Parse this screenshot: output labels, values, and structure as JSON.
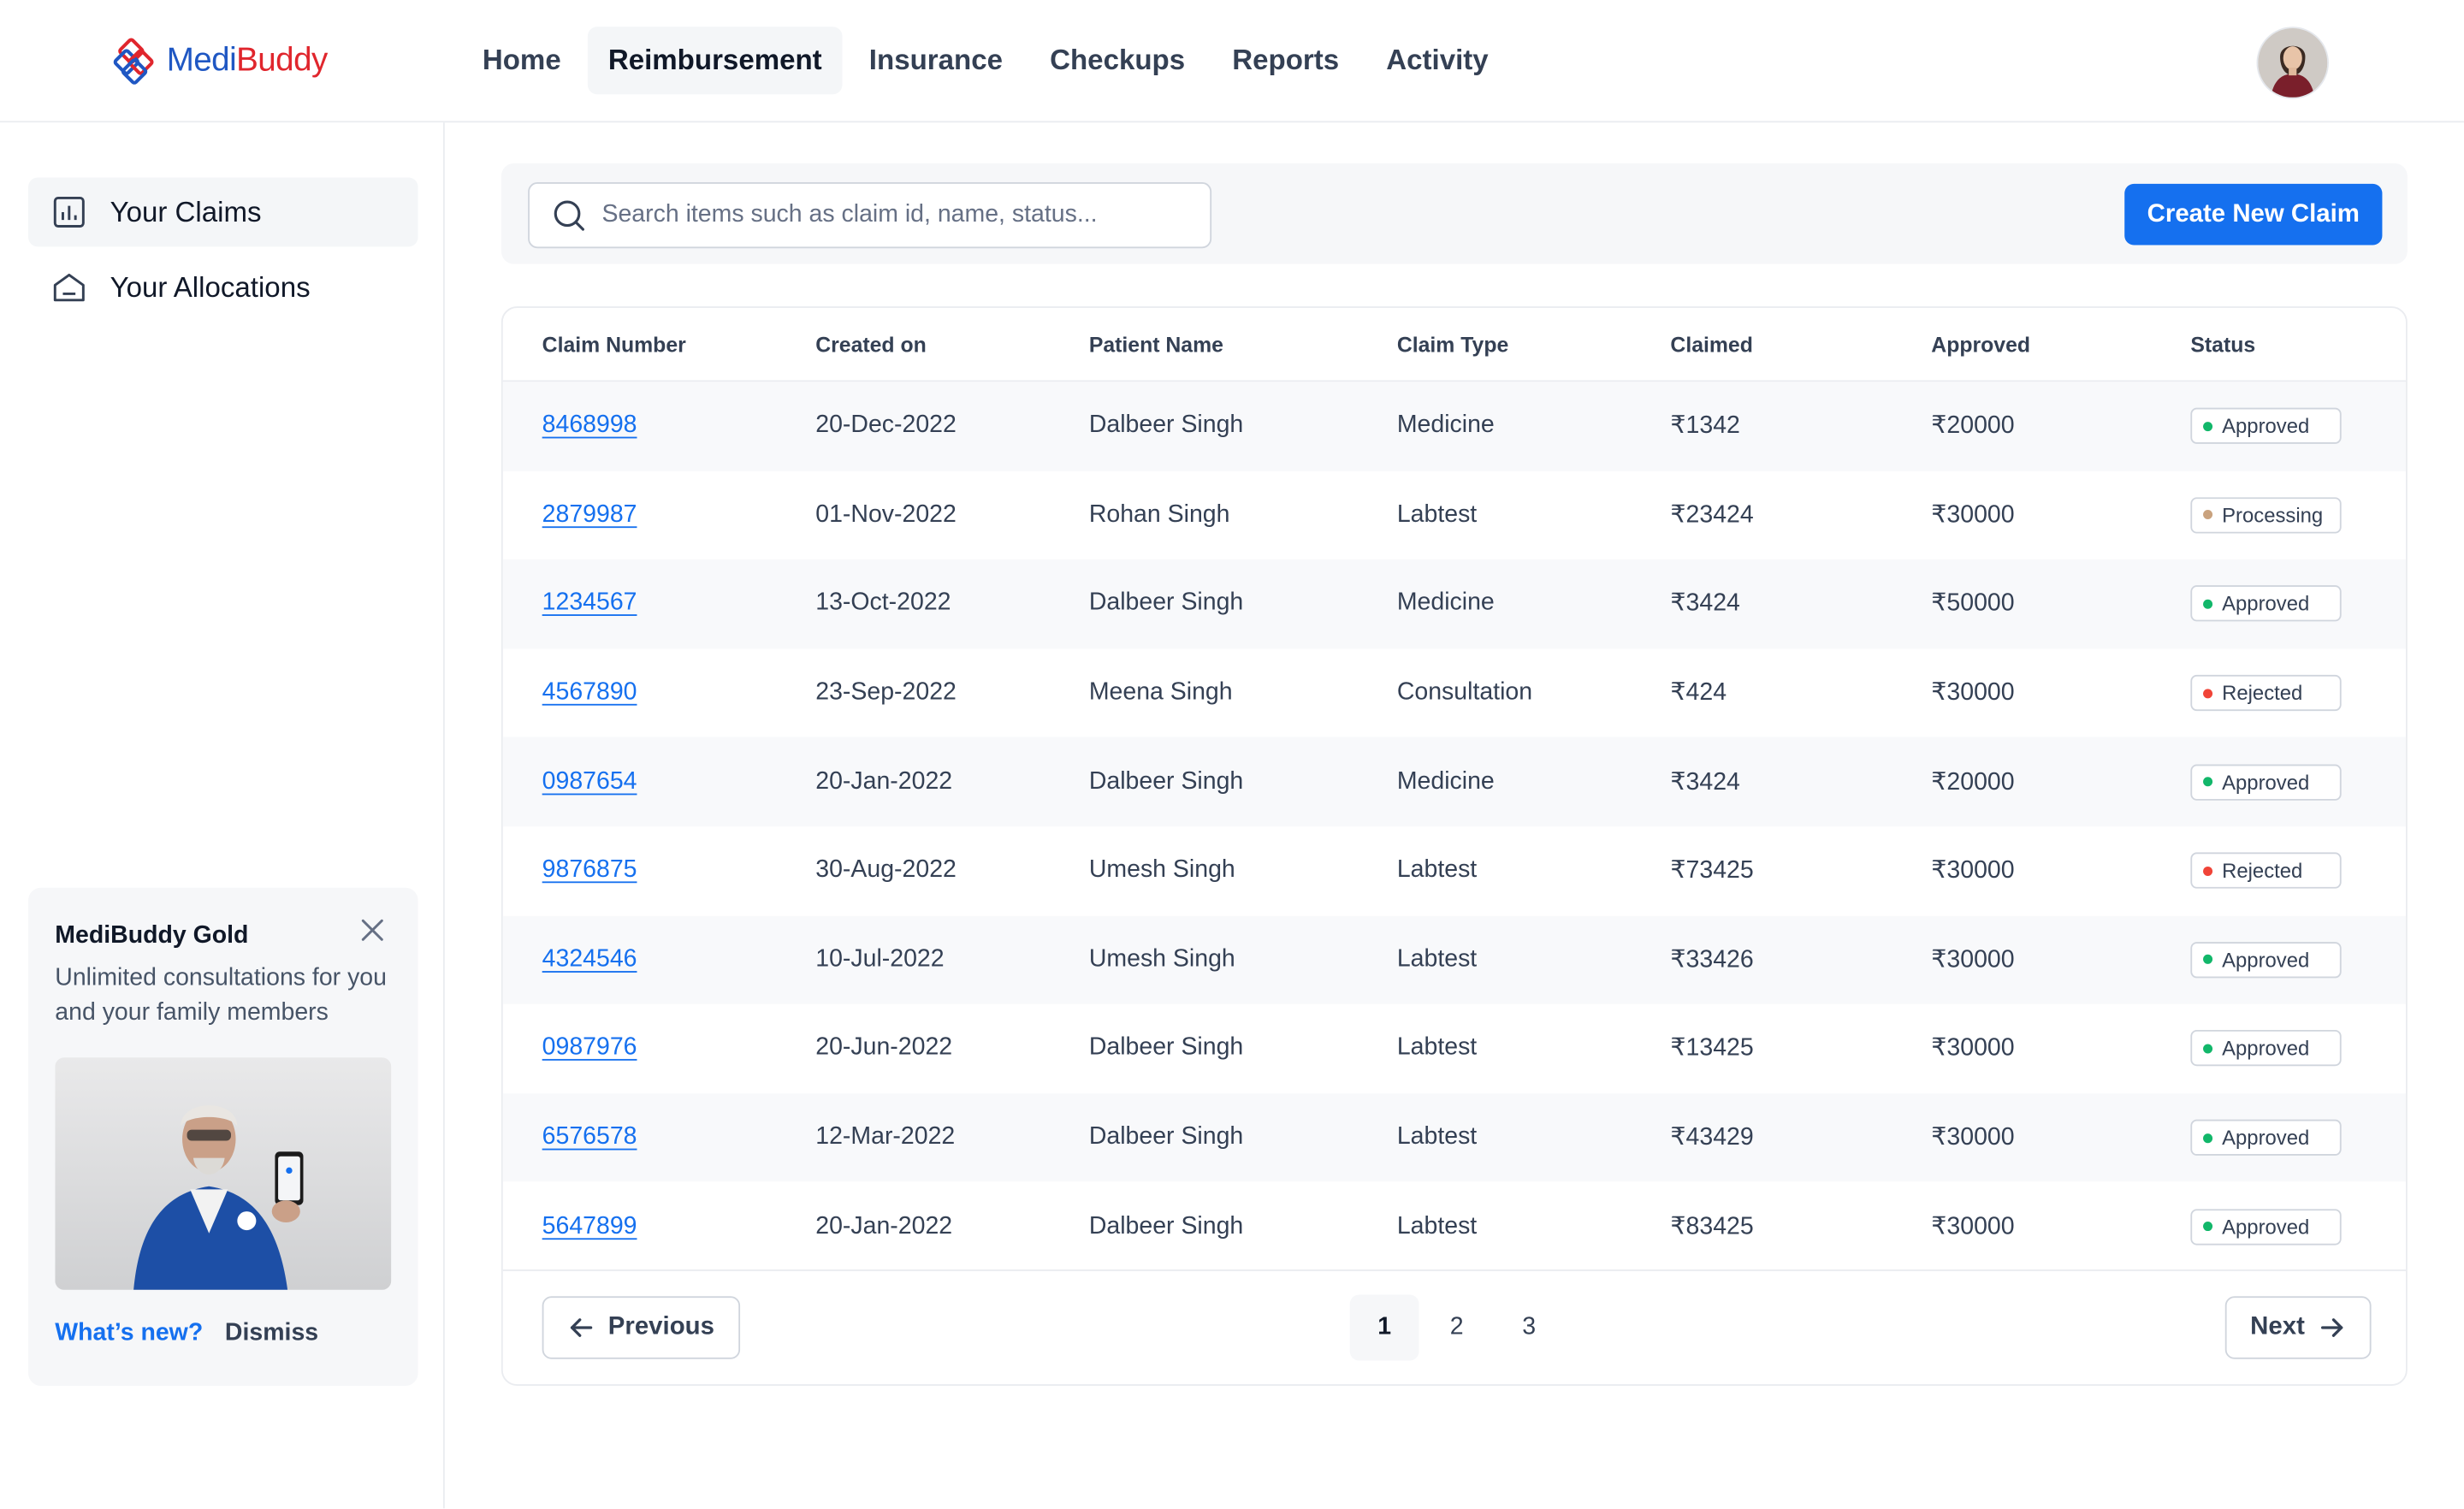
{
  "brand": {
    "part1": "Medi",
    "part2": "Buddy"
  },
  "nav": {
    "items": [
      {
        "label": "Home",
        "active": false
      },
      {
        "label": "Reimbursement",
        "active": true
      },
      {
        "label": "Insurance",
        "active": false
      },
      {
        "label": "Checkups",
        "active": false
      },
      {
        "label": "Reports",
        "active": false
      },
      {
        "label": "Activity",
        "active": false
      }
    ]
  },
  "sidebar": {
    "items": [
      {
        "label": "Your Claims",
        "icon": "bar-chart-icon",
        "active": true
      },
      {
        "label": "Your Allocations",
        "icon": "home-icon",
        "active": false
      }
    ]
  },
  "promo": {
    "title": "MediBuddy Gold",
    "description": "Unlimited consultations for you and your family members",
    "link_new": "What’s new?",
    "link_dismiss": "Dismiss"
  },
  "search": {
    "placeholder": "Search items such as claim id, name, status...",
    "value": ""
  },
  "toolbar": {
    "create_label": "Create New Claim"
  },
  "table": {
    "headers": {
      "claim_number": "Claim Number",
      "created_on": "Created on",
      "patient_name": "Patient Name",
      "claim_type": "Claim Type",
      "claimed": "Claimed",
      "approved": "Approved",
      "status": "Status"
    },
    "rows": [
      {
        "claim_number": "8468998",
        "created_on": "20-Dec-2022",
        "patient_name": "Dalbeer Singh",
        "claim_type": "Medicine",
        "claimed": "₹1342",
        "approved": "₹20000",
        "status": "Approved"
      },
      {
        "claim_number": "2879987",
        "created_on": "01-Nov-2022",
        "patient_name": "Rohan Singh",
        "claim_type": "Labtest",
        "claimed": "₹23424",
        "approved": "₹30000",
        "status": "Processing"
      },
      {
        "claim_number": "1234567",
        "created_on": "13-Oct-2022",
        "patient_name": "Dalbeer Singh",
        "claim_type": "Medicine",
        "claimed": "₹3424",
        "approved": "₹50000",
        "status": "Approved"
      },
      {
        "claim_number": "4567890",
        "created_on": "23-Sep-2022",
        "patient_name": "Meena Singh",
        "claim_type": "Consultation",
        "claimed": "₹424",
        "approved": "₹30000",
        "status": "Rejected"
      },
      {
        "claim_number": "0987654",
        "created_on": "20-Jan-2022",
        "patient_name": "Dalbeer Singh",
        "claim_type": "Medicine",
        "claimed": "₹3424",
        "approved": "₹20000",
        "status": "Approved"
      },
      {
        "claim_number": "9876875",
        "created_on": "30-Aug-2022",
        "patient_name": "Umesh Singh",
        "claim_type": "Labtest",
        "claimed": "₹73425",
        "approved": "₹30000",
        "status": "Rejected"
      },
      {
        "claim_number": "4324546",
        "created_on": "10-Jul-2022",
        "patient_name": "Umesh Singh",
        "claim_type": "Labtest",
        "claimed": "₹33426",
        "approved": "₹30000",
        "status": "Approved"
      },
      {
        "claim_number": "0987976",
        "created_on": "20-Jun-2022",
        "patient_name": "Dalbeer Singh",
        "claim_type": "Labtest",
        "claimed": "₹13425",
        "approved": "₹30000",
        "status": "Approved"
      },
      {
        "claim_number": "6576578",
        "created_on": "12-Mar-2022",
        "patient_name": "Dalbeer Singh",
        "claim_type": "Labtest",
        "claimed": "₹43429",
        "approved": "₹30000",
        "status": "Approved"
      },
      {
        "claim_number": "5647899",
        "created_on": "20-Jan-2022",
        "patient_name": "Dalbeer Singh",
        "claim_type": "Labtest",
        "claimed": "₹83425",
        "approved": "₹30000",
        "status": "Approved"
      }
    ]
  },
  "status_colors": {
    "Approved": "#12b76a",
    "Processing": "#c9a27e",
    "Rejected": "#f04438"
  },
  "pagination": {
    "previous_label": "Previous",
    "next_label": "Next",
    "pages": [
      "1",
      "2",
      "3"
    ],
    "current": "1"
  },
  "colors": {
    "accent": "#1570ef",
    "brand_blue": "#1f57c3",
    "brand_red": "#e0262d"
  }
}
